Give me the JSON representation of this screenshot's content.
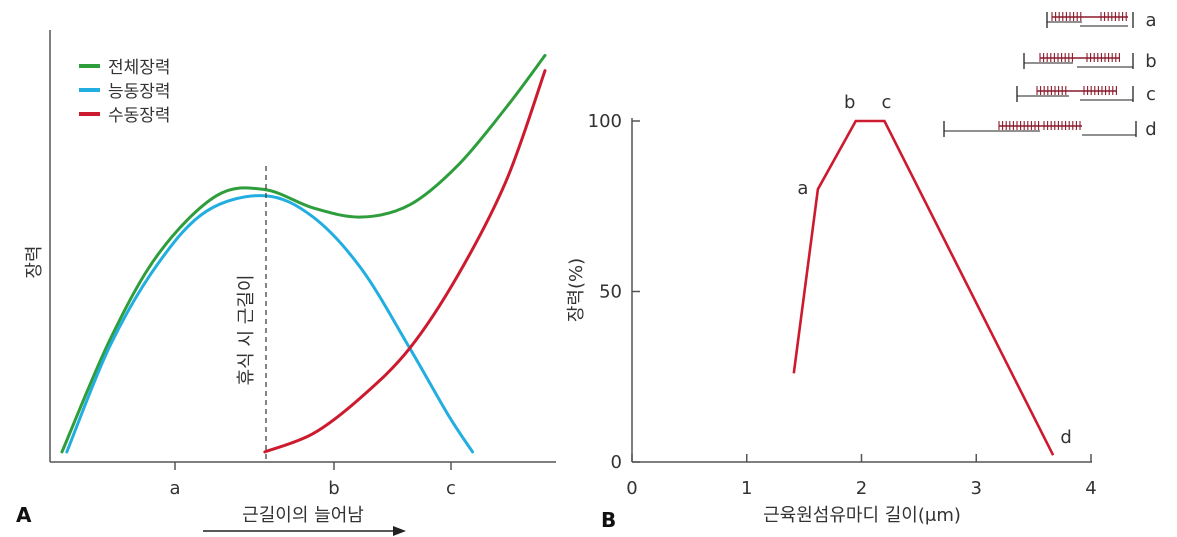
{
  "chart_data": [
    {
      "panel": "A",
      "type": "line",
      "ylabel": "장력",
      "xlabel": "근길이의 늘어남",
      "x_categories": [
        "a",
        "b",
        "c"
      ],
      "annotation": "휴식 시 근길이",
      "legend": [
        {
          "name": "전체장력",
          "color": "#2e9d3c"
        },
        {
          "name": "능동장력",
          "color": "#22aee0"
        },
        {
          "name": "수동장력",
          "color": "#cc1a2e"
        }
      ],
      "series": [
        {
          "name": "전체장력",
          "color": "#2e9d3c",
          "points": [
            [
              0,
              0.02
            ],
            [
              0.1,
              0.39
            ],
            [
              0.2,
              0.67
            ],
            [
              0.32,
              0.86
            ],
            [
              0.42,
              0.88
            ],
            [
              0.52,
              0.82
            ],
            [
              0.62,
              0.79
            ],
            [
              0.72,
              0.83
            ],
            [
              0.82,
              0.96
            ],
            [
              0.92,
              1.15
            ],
            [
              1.0,
              1.32
            ]
          ]
        },
        {
          "name": "능동장력",
          "color": "#22aee0",
          "points": [
            [
              0.01,
              0.02
            ],
            [
              0.1,
              0.37
            ],
            [
              0.2,
              0.64
            ],
            [
              0.3,
              0.81
            ],
            [
              0.42,
              0.86
            ],
            [
              0.52,
              0.79
            ],
            [
              0.62,
              0.62
            ],
            [
              0.72,
              0.36
            ],
            [
              0.8,
              0.14
            ],
            [
              0.85,
              0.02
            ]
          ]
        },
        {
          "name": "수동장력",
          "color": "#cc1a2e",
          "points": [
            [
              0.42,
              0.02
            ],
            [
              0.52,
              0.08
            ],
            [
              0.62,
              0.2
            ],
            [
              0.72,
              0.36
            ],
            [
              0.82,
              0.6
            ],
            [
              0.92,
              0.91
            ],
            [
              1.0,
              1.27
            ]
          ]
        }
      ]
    },
    {
      "panel": "B",
      "type": "line",
      "xlabel": "근육원섬유마디 길이(μm)",
      "ylabel": "장력(%)",
      "xlim": [
        0,
        4
      ],
      "ylim": [
        0,
        100
      ],
      "xticks": [
        0,
        1,
        2,
        3,
        4
      ],
      "yticks": [
        0,
        50,
        100
      ],
      "series": [
        {
          "name": "",
          "color": "#cc1a2e",
          "x": [
            1.41,
            1.62,
            1.95,
            2.2,
            3.67
          ],
          "y": [
            26,
            80,
            100,
            100,
            2
          ]
        }
      ],
      "point_labels": [
        {
          "text": "a",
          "x": 1.62,
          "y": 80
        },
        {
          "text": "b",
          "x": 1.95,
          "y": 100
        },
        {
          "text": "c",
          "x": 2.2,
          "y": 100
        },
        {
          "text": "d",
          "x": 3.67,
          "y": 2
        }
      ],
      "sarcomere_diagrams": [
        "a",
        "b",
        "c",
        "d"
      ]
    }
  ]
}
